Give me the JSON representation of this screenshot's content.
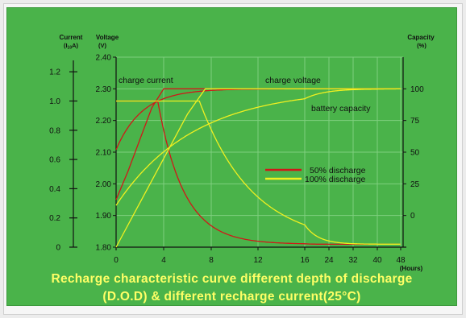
{
  "chart_data": {
    "type": "line",
    "left_axis_current": {
      "label_line1": "Current",
      "label_line2": "(I",
      "label_sub": "10",
      "label_end": "A)",
      "ticks": [
        0,
        0.2,
        0.4,
        0.6,
        0.8,
        1.0,
        1.2
      ],
      "tick_labels": [
        "0",
        "0.2",
        "0.4",
        "0.6",
        "0.8",
        "1.0",
        "1.2"
      ],
      "range": [
        0,
        1.3
      ]
    },
    "left_axis_voltage": {
      "label_line1": "Voltage",
      "label_line2": "(V)",
      "ticks": [
        1.8,
        1.9,
        2.0,
        2.1,
        2.2,
        2.3,
        2.4
      ],
      "tick_labels": [
        "1.80",
        "1.90",
        "2.00",
        "2.10",
        "2.20",
        "2.30",
        "2.40"
      ],
      "range": [
        1.8,
        2.4
      ]
    },
    "right_axis_capacity": {
      "label_line1": "Capacity",
      "label_line2": "(%)",
      "ticks": [
        0,
        25,
        50,
        75,
        100
      ],
      "tick_labels": [
        "0",
        "25",
        "50",
        "75",
        "100"
      ],
      "range": [
        -25,
        125
      ]
    },
    "x_axis": {
      "unit_label": "(Hours)",
      "ticks": [
        0,
        4,
        8,
        12,
        16,
        24,
        32,
        40,
        48
      ],
      "tick_labels": [
        "0",
        "4",
        "8",
        "12",
        "16",
        "24",
        "32",
        "40",
        "48"
      ]
    },
    "grid": true,
    "annotations": {
      "charge_current": "charge current",
      "charge_voltage": "charge voltage",
      "battery_capacity": "battery capacity"
    },
    "legend": {
      "placement": "center-right",
      "entries": [
        {
          "label": "50% discharge",
          "color": "#d01818"
        },
        {
          "label": "100% discharge",
          "color": "#f0f020"
        }
      ]
    },
    "series": [
      {
        "curve": "voltage",
        "discharge": "50%",
        "color": "#d01818",
        "axis": "voltage",
        "x": [
          0,
          1,
          2,
          3,
          4,
          48
        ],
        "y": [
          1.95,
          2.04,
          2.14,
          2.24,
          2.3,
          2.3
        ]
      },
      {
        "curve": "current",
        "discharge": "50%",
        "color": "#d01818",
        "axis": "current",
        "x": [
          0,
          3.5,
          48
        ],
        "y": [
          1.0,
          1.0,
          0.02
        ],
        "decay_tau_h": 2.2
      },
      {
        "curve": "capacity",
        "discharge": "50%",
        "color": "#d01818",
        "axis": "capacity",
        "x": [
          0,
          48
        ],
        "y": [
          52,
          100
        ],
        "rise_tau_h": 2.2
      },
      {
        "curve": "voltage",
        "discharge": "100%",
        "color": "#f0f020",
        "axis": "voltage",
        "x": [
          0,
          2,
          4,
          6,
          7.5,
          48
        ],
        "y": [
          1.8,
          1.94,
          2.08,
          2.22,
          2.3,
          2.3
        ]
      },
      {
        "curve": "current",
        "discharge": "100%",
        "color": "#f0f020",
        "axis": "current",
        "x": [
          0,
          7,
          48
        ],
        "y": [
          1.0,
          1.0,
          0.02
        ],
        "decay_tau_h": 4.5
      },
      {
        "curve": "capacity",
        "discharge": "100%",
        "color": "#f0f020",
        "axis": "capacity",
        "x": [
          0,
          48
        ],
        "y": [
          8,
          100
        ],
        "rise_tau_h": 6.5
      }
    ]
  },
  "caption": {
    "line1": "Recharge characteristic curve different depth of discharge",
    "line2": "(D.O.D) & different recharge current(25°C)"
  },
  "colors": {
    "background": "#4ab34a",
    "grid": "#7fcf7f",
    "axis": "#111111",
    "caption": "#ffff66"
  }
}
